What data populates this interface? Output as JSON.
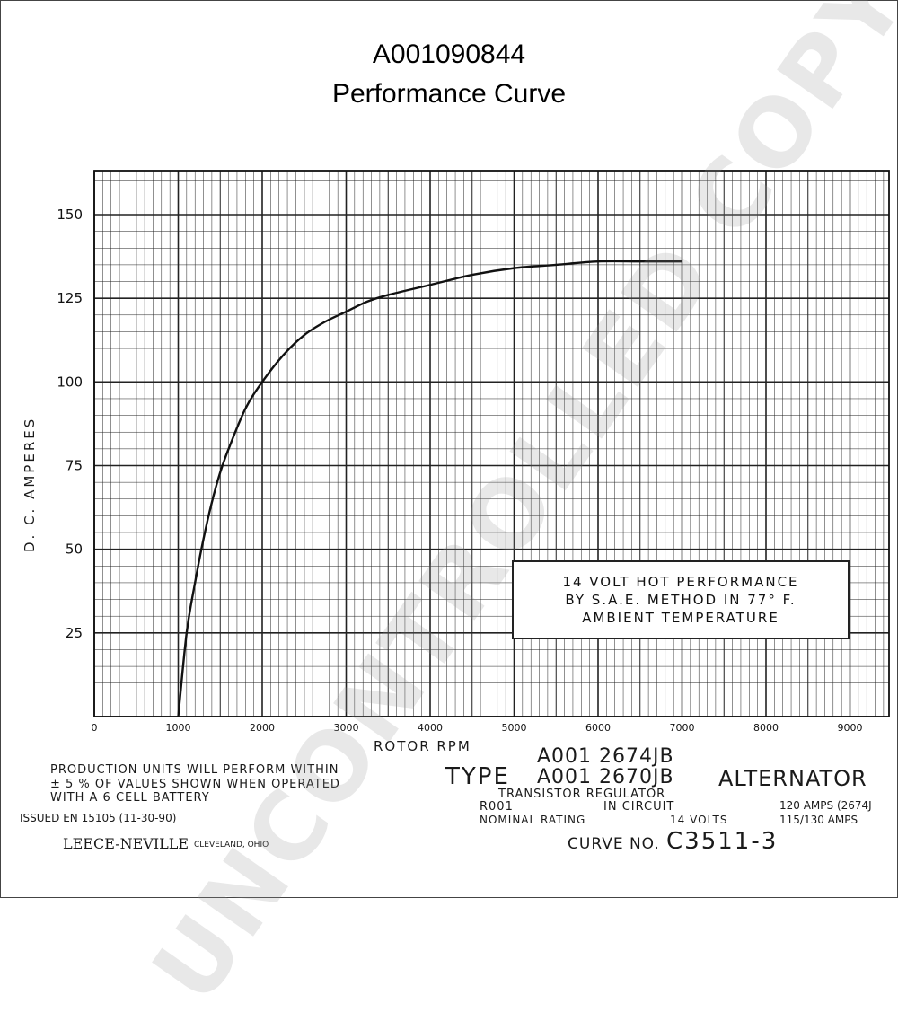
{
  "header": {
    "part_number": "A001090844",
    "subtitle": "Performance Curve"
  },
  "chart_data": {
    "type": "line",
    "xlabel": "ROTOR RPM",
    "ylabel": "D. C. AMPERES",
    "xlim": [
      0,
      9500
    ],
    "ylim": [
      0,
      163
    ],
    "x_ticks": [
      "0",
      "1000",
      "2000",
      "3000",
      "4000",
      "5000",
      "6000",
      "7000",
      "8000",
      "9000"
    ],
    "y_ticks": [
      "25",
      "50",
      "75",
      "100",
      "125",
      "150"
    ],
    "grid": true,
    "series": [
      {
        "x": [
          1000,
          1100,
          1200,
          1300,
          1400,
          1500,
          1600,
          1800,
          2000,
          2250,
          2500,
          2750,
          3000,
          3250,
          3500,
          4000,
          4500,
          5000,
          5500,
          6000,
          6500,
          7000
        ],
        "values": [
          0,
          25,
          40,
          53,
          64,
          73,
          80,
          92,
          100,
          108,
          114,
          118,
          121,
          124,
          126,
          129,
          132,
          134,
          135,
          136,
          136,
          136
        ]
      }
    ]
  },
  "annotation_box": {
    "line1": "14 VOLT HOT PERFORMANCE",
    "line2": "BY S.A.E. METHOD IN 77° F.",
    "line3": "AMBIENT TEMPERATURE"
  },
  "footer": {
    "production_1": "PRODUCTION UNITS WILL PERFORM WITHIN",
    "production_2": "± 5 % OF VALUES SHOWN WHEN OPERATED",
    "production_3": "WITH A 6 CELL BATTERY",
    "issued": "ISSUED EN 15105 (11-30-90)",
    "company": "LEECE-NEVILLE",
    "location": "CLEVELAND, OHIO",
    "model_1": "A001 2674JB",
    "model_2": "A001 2670JB",
    "type_label": "TYPE",
    "alternator_label": "ALTERNATOR",
    "regulator": "TRANSISTOR REGULATOR",
    "reg_code": "R001",
    "in_circuit": "IN CIRCUIT",
    "nominal_rating": "NOMINAL RATING",
    "volts": "14 VOLTS",
    "amps_1": "120 AMPS (2674J",
    "amps_2": "115/130 AMPS",
    "curve_label": "CURVE NO.",
    "curve_number": "C3511-3"
  },
  "watermark": "UNCONTROLLED COPY"
}
